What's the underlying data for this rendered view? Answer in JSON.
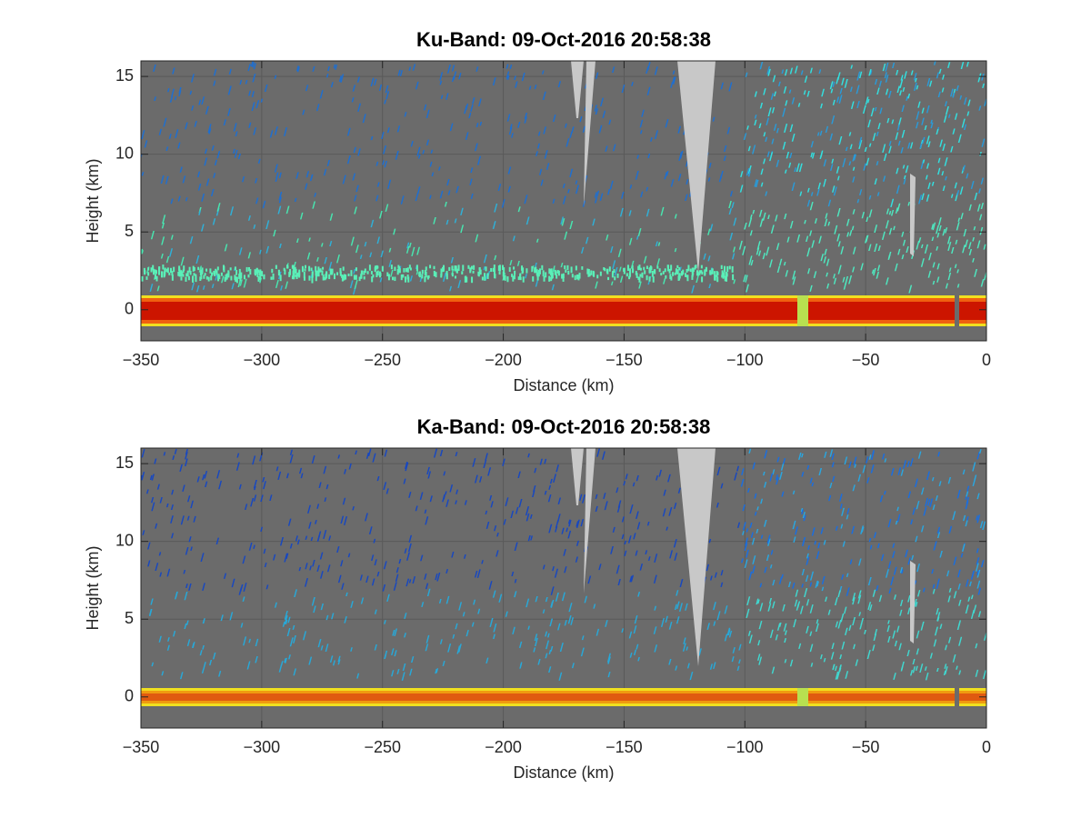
{
  "chart_data": [
    {
      "type": "image",
      "title": "Ku-Band: 09-Oct-2016 20:58:38",
      "xlabel": "Distance (km)",
      "ylabel": "Height (km)",
      "xlim": [
        -350,
        0
      ],
      "ylim": [
        -2,
        16
      ],
      "xticks": [
        {
          "value": -350,
          "label": "−350"
        },
        {
          "value": -300,
          "label": "−300"
        },
        {
          "value": -250,
          "label": "−250"
        },
        {
          "value": -200,
          "label": "−200"
        },
        {
          "value": -150,
          "label": "−150"
        },
        {
          "value": -100,
          "label": "−100"
        },
        {
          "value": -50,
          "label": "−50"
        },
        0
      ],
      "yticks": [
        0,
        5,
        10,
        15
      ],
      "grid": true
    },
    {
      "type": "image",
      "title": "Ka-Band: 09-Oct-2016 20:58:38",
      "xlabel": "Distance (km)",
      "ylabel": "Height (km)",
      "xlim": [
        -350,
        0
      ],
      "ylim": [
        -2,
        16
      ],
      "xticks": [
        {
          "value": -350,
          "label": "−350"
        },
        {
          "value": -300,
          "label": "−300"
        },
        {
          "value": -250,
          "label": "−250"
        },
        {
          "value": -200,
          "label": "−200"
        },
        {
          "value": -150,
          "label": "−150"
        },
        {
          "value": -100,
          "label": "−100"
        },
        {
          "value": -50,
          "label": "−50"
        },
        0
      ],
      "yticks": [
        0,
        5,
        10,
        15
      ],
      "grid": true
    }
  ]
}
